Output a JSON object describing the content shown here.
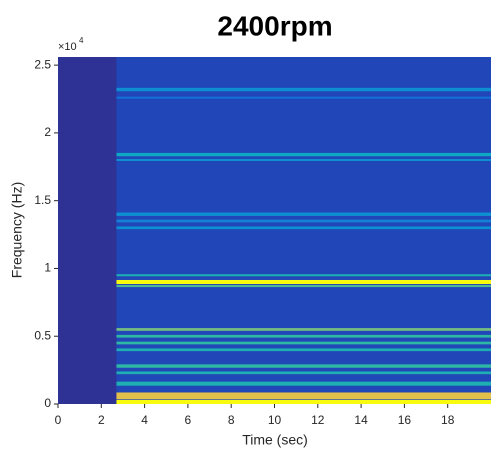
{
  "chart_data": {
    "type": "spectrogram",
    "title": "2400rpm",
    "x_label": "Time (sec)",
    "y_label": "Frequency (Hz)",
    "y_multiplier": "×10",
    "y_exponent": "4",
    "xlim": [
      0,
      20
    ],
    "xticks": [
      0,
      2,
      4,
      6,
      8,
      10,
      12,
      14,
      16,
      18
    ],
    "ylim": [
      0,
      25600
    ],
    "yticks": [
      0,
      {
        "value": 5000,
        "label": "0.5"
      },
      {
        "value": 10000,
        "label": "1"
      },
      {
        "value": 15000,
        "label": "1.5"
      },
      {
        "value": 20000,
        "label": "2"
      },
      {
        "value": 25000,
        "label": "2.5"
      }
    ],
    "colormap": [
      "#352a87",
      "#0f5cdd",
      "#1481d6",
      "#06a4ca",
      "#2eb7a4",
      "#87bf77",
      "#d1bb59",
      "#fec832",
      "#f9fb0e"
    ],
    "background_level": 0.02,
    "signal_level": 0.07,
    "onset": 2.7,
    "bands": [
      {
        "frequency": 23200,
        "width": 250,
        "level": 0.3
      },
      {
        "frequency": 22600,
        "width": 150,
        "level": 0.2
      },
      {
        "frequency": 18400,
        "width": 250,
        "level": 0.4
      },
      {
        "frequency": 18000,
        "width": 150,
        "level": 0.3
      },
      {
        "frequency": 14000,
        "width": 250,
        "level": 0.3
      },
      {
        "frequency": 13500,
        "width": 200,
        "level": 0.25
      },
      {
        "frequency": 13000,
        "width": 200,
        "level": 0.3
      },
      {
        "frequency": 9500,
        "width": 150,
        "level": 0.45
      },
      {
        "frequency": 9000,
        "width": 300,
        "level": 1
      },
      {
        "frequency": 8700,
        "width": 150,
        "level": 0.55
      },
      {
        "frequency": 5500,
        "width": 200,
        "level": 0.6
      },
      {
        "frequency": 5000,
        "width": 200,
        "level": 0.5
      },
      {
        "frequency": 4500,
        "width": 200,
        "level": 0.5
      },
      {
        "frequency": 4000,
        "width": 200,
        "level": 0.45
      },
      {
        "frequency": 2800,
        "width": 250,
        "level": 0.5
      },
      {
        "frequency": 2300,
        "width": 200,
        "level": 0.45
      },
      {
        "frequency": 1500,
        "width": 300,
        "level": 0.45
      },
      {
        "frequency": 600,
        "width": 500,
        "level": 0.8
      },
      {
        "frequency": 150,
        "width": 300,
        "level": 1
      }
    ]
  }
}
